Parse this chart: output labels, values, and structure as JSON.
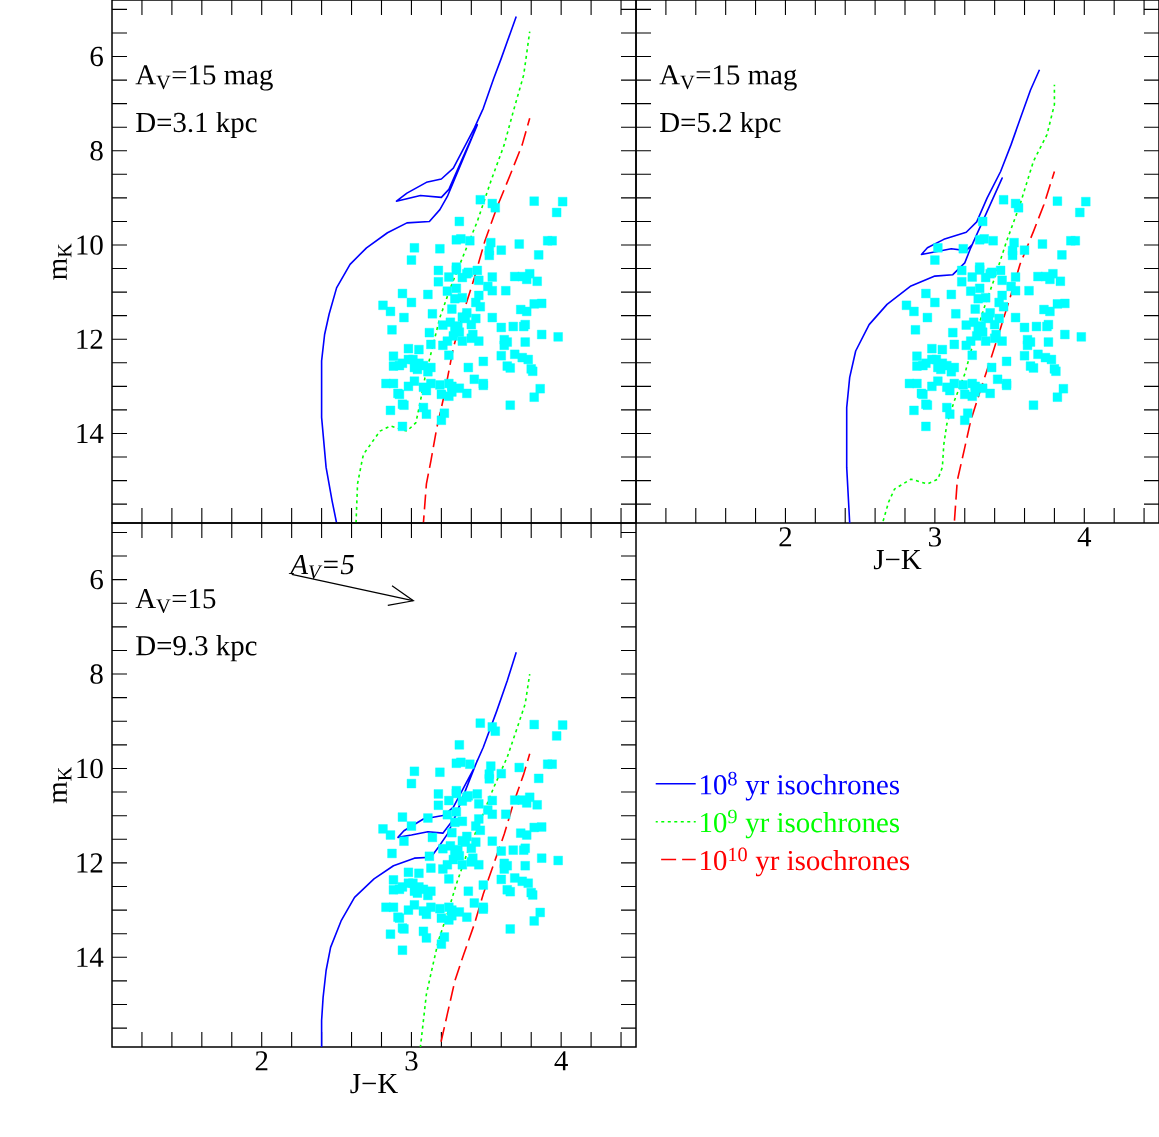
{
  "chart_data": [
    {
      "type": "scatter",
      "xlim": [
        1,
        4.5
      ],
      "ylim": [
        15.9,
        4.8
      ],
      "ylabel": "m$_{K}$",
      "tick_labels": "y",
      "xticks": [
        {
          "value": 1.2,
          "label": null
        },
        {
          "value": 1.4,
          "label": null
        },
        {
          "value": 1.6,
          "label": null
        },
        {
          "value": 1.8,
          "label": null
        },
        2,
        {
          "value": 2.2,
          "label": null
        },
        {
          "value": 2.4,
          "label": null
        },
        {
          "value": 2.6,
          "label": null
        },
        {
          "value": 2.8,
          "label": null
        },
        3,
        {
          "value": 3.2,
          "label": null
        },
        {
          "value": 3.4,
          "label": null
        },
        {
          "value": 3.6,
          "label": null
        },
        {
          "value": 3.8,
          "label": null
        },
        4,
        {
          "value": 4.2,
          "label": null
        },
        {
          "value": 4.4,
          "label": null
        }
      ],
      "yticks": [
        {
          "value": 5,
          "label": null
        },
        {
          "value": 5.5,
          "label": null
        },
        6,
        {
          "value": 6.5,
          "label": null
        },
        {
          "value": 7,
          "label": null
        },
        {
          "value": 7.5,
          "label": null
        },
        8,
        {
          "value": 8.5,
          "label": null
        },
        {
          "value": 9,
          "label": null
        },
        {
          "value": 9.5,
          "label": null
        },
        10,
        {
          "value": 10.5,
          "label": null
        },
        {
          "value": 11,
          "label": null
        },
        {
          "value": 11.5,
          "label": null
        },
        12,
        {
          "value": 12.5,
          "label": null
        },
        {
          "value": 13,
          "label": null
        },
        {
          "value": 13.5,
          "label": null
        },
        14,
        {
          "value": 14.5,
          "label": null
        },
        {
          "value": 15,
          "label": null
        },
        {
          "value": 15.5,
          "label": null
        }
      ],
      "annotations": [
        "A$_{V}$=15 mag",
        "D=3.1 kpc"
      ],
      "series": [
        {
          "color": "#00ffff",
          "marker": "square",
          "x": [
            3.46,
            3.54,
            3.56,
            3.82,
            4.01,
            3.97,
            3.32,
            3.3,
            3.33,
            3.39,
            3.53,
            3.72,
            3.91,
            3.94,
            3.02,
            3.19,
            3.52,
            3.6,
            3.52,
            3.85,
            3.0,
            3.18,
            3.3,
            3.3,
            3.44,
            3.37,
            3.38,
            3.34,
            3.25,
            3.54,
            3.69,
            3.74,
            3.79,
            3.77,
            3.84,
            3.18,
            3.45,
            3.3,
            3.24,
            3.51,
            3.54,
            3.63,
            2.94,
            3.11,
            3.45,
            3.29,
            3.34,
            3.0,
            2.81,
            3.43,
            3.46,
            3.82,
            3.87,
            2.86,
            3.27,
            3.73,
            3.77,
            2.95,
            3.14,
            3.37,
            3.34,
            3.36,
            3.43,
            3.54,
            3.26,
            3.21,
            3.31,
            3.4,
            3.6,
            3.68,
            3.75,
            3.76,
            2.87,
            3.29,
            3.32,
            3.12,
            3.28,
            3.41,
            3.4,
            3.87,
            3.98,
            3.24,
            3.34,
            3.45,
            3.62,
            3.64,
            3.76,
            3.62,
            3.21,
            3.13,
            2.98,
            3.05,
            3.25,
            3.6,
            3.69,
            3.74,
            3.78,
            2.88,
            2.98,
            3.01,
            2.94,
            2.88,
            2.92,
            3.48,
            3.05,
            3.08,
            3.02,
            3.04,
            3.13,
            3.11,
            3.38,
            3.64,
            3.66,
            3.8,
            3.81,
            2.83,
            2.88,
            3.02,
            2.98,
            3.13,
            3.19,
            3.25,
            3.27,
            3.32,
            3.42,
            3.48,
            3.48,
            3.86,
            2.91,
            2.92,
            3.08,
            3.1,
            3.2,
            3.25,
            3.27,
            3.37,
            3.82,
            2.94,
            2.95,
            3.66,
            2.86,
            3.08,
            3.1,
            3.22,
            3.2,
            2.94
          ],
          "values": [
            9.04,
            9.12,
            9.21,
            9.07,
            9.08,
            9.31,
            9.5,
            9.89,
            9.87,
            9.91,
            9.95,
            9.98,
            9.91,
            9.91,
            10.06,
            10.08,
            10.12,
            10.11,
            10.22,
            10.21,
            10.32,
            10.54,
            10.47,
            10.53,
            10.54,
            10.61,
            10.58,
            10.69,
            10.68,
            10.68,
            10.67,
            10.67,
            10.61,
            10.73,
            10.77,
            10.78,
            10.75,
            10.92,
            10.98,
            10.88,
            10.97,
            10.97,
            11.03,
            11.05,
            11.07,
            11.14,
            11.12,
            11.22,
            11.28,
            11.22,
            11.31,
            11.25,
            11.24,
            11.41,
            11.36,
            11.37,
            11.41,
            11.54,
            11.46,
            11.44,
            11.53,
            11.56,
            11.56,
            11.54,
            11.64,
            11.7,
            11.72,
            11.69,
            11.75,
            11.73,
            11.73,
            11.69,
            11.8,
            11.79,
            11.85,
            11.86,
            11.93,
            11.9,
            11.98,
            11.9,
            11.95,
            12.04,
            12.04,
            12.04,
            12.01,
            12.06,
            12.06,
            12.13,
            12.13,
            12.11,
            12.2,
            12.22,
            12.34,
            12.35,
            12.32,
            12.39,
            12.43,
            12.36,
            12.43,
            12.43,
            12.51,
            12.57,
            12.56,
            12.47,
            12.51,
            12.56,
            12.6,
            12.64,
            12.6,
            12.69,
            12.6,
            12.57,
            12.61,
            12.63,
            12.68,
            12.94,
            12.94,
            12.89,
            13.0,
            12.94,
            12.97,
            12.94,
            13.0,
            13.04,
            12.85,
            12.94,
            12.98,
            13.05,
            13.15,
            13.17,
            13.02,
            13.09,
            13.17,
            13.21,
            13.12,
            13.15,
            13.23,
            13.38,
            13.4,
            13.4,
            13.51,
            13.45,
            13.59,
            13.57,
            13.72,
            13.85
          ]
        },
        {
          "type": "line",
          "color": "#0000ff",
          "line_style": "solid",
          "x": [
            2.5,
            2.47,
            2.43,
            2.4,
            2.4,
            2.42,
            2.45,
            2.5,
            2.59,
            2.7,
            2.84,
            2.97,
            3.12,
            3.19,
            3.24,
            3.44,
            3.25,
            3.2,
            3.06,
            2.9,
            2.97,
            3.1,
            3.2,
            3.28,
            3.42,
            3.48,
            3.55,
            3.6,
            3.7
          ],
          "values": [
            15.9,
            15.43,
            14.72,
            13.66,
            12.46,
            11.9,
            11.47,
            10.91,
            10.41,
            10.06,
            9.74,
            9.53,
            9.5,
            9.25,
            8.97,
            7.45,
            8.82,
            8.99,
            8.95,
            9.07,
            8.9,
            8.67,
            8.6,
            8.37,
            7.52,
            7.1,
            6.46,
            6.04,
            5.15
          ]
        },
        {
          "type": "line",
          "color": "#00ff00",
          "line_style": "dotted",
          "x": [
            2.63,
            2.64,
            2.67,
            2.68,
            2.79,
            2.86,
            2.97,
            3.03,
            3.06,
            3.09,
            3.14,
            3.19,
            3.26,
            3.35,
            3.44,
            3.53,
            3.62,
            3.68,
            3.75,
            3.79
          ],
          "values": [
            15.9,
            15.07,
            14.58,
            14.44,
            13.95,
            13.84,
            13.95,
            13.77,
            13.31,
            12.82,
            12.18,
            11.54,
            10.91,
            10.2,
            9.5,
            8.65,
            7.87,
            7.17,
            6.39,
            5.47
          ]
        },
        {
          "type": "line",
          "color": "#ff0000",
          "line_style": "dashed",
          "x": [
            3.08,
            3.1,
            3.13,
            3.17,
            3.22,
            3.28,
            3.35,
            3.42,
            3.49,
            3.57,
            3.66,
            3.74,
            3.79
          ],
          "values": [
            15.9,
            15.07,
            14.58,
            13.87,
            13.17,
            12.18,
            11.4,
            10.7,
            9.92,
            9.21,
            8.51,
            7.87,
            7.31
          ]
        }
      ]
    },
    {
      "type": "scatter",
      "xlim": [
        1,
        4.5
      ],
      "ylim": [
        15.9,
        4.8
      ],
      "xlabel": "J−K",
      "tick_labels": "x",
      "xticks": [
        {
          "value": 1.2,
          "label": null
        },
        {
          "value": 1.4,
          "label": null
        },
        {
          "value": 1.6,
          "label": null
        },
        {
          "value": 1.8,
          "label": null
        },
        2,
        {
          "value": 2.2,
          "label": null
        },
        {
          "value": 2.4,
          "label": null
        },
        {
          "value": 2.6,
          "label": null
        },
        {
          "value": 2.8,
          "label": null
        },
        3,
        {
          "value": 3.2,
          "label": null
        },
        {
          "value": 3.4,
          "label": null
        },
        {
          "value": 3.6,
          "label": null
        },
        {
          "value": 3.8,
          "label": null
        },
        4,
        {
          "value": 4.2,
          "label": null
        },
        {
          "value": 4.4,
          "label": null
        }
      ],
      "yticks": [
        {
          "value": 5,
          "label": null
        },
        {
          "value": 5.5,
          "label": null
        },
        6,
        {
          "value": 6.5,
          "label": null
        },
        {
          "value": 7,
          "label": null
        },
        {
          "value": 7.5,
          "label": null
        },
        8,
        {
          "value": 8.5,
          "label": null
        },
        {
          "value": 9,
          "label": null
        },
        {
          "value": 9.5,
          "label": null
        },
        10,
        {
          "value": 10.5,
          "label": null
        },
        {
          "value": 11,
          "label": null
        },
        {
          "value": 11.5,
          "label": null
        },
        12,
        {
          "value": 12.5,
          "label": null
        },
        {
          "value": 13,
          "label": null
        },
        {
          "value": 13.5,
          "label": null
        },
        14,
        {
          "value": 14.5,
          "label": null
        },
        {
          "value": 15,
          "label": null
        },
        {
          "value": 15.5,
          "label": null
        }
      ],
      "annotations": [
        "A$_{V}$=15 mag",
        "D=5.2 kpc"
      ],
      "series": [
        {
          "color": "#00ffff",
          "marker": "square",
          "x": [
            3.46,
            3.54,
            3.56,
            3.82,
            4.01,
            3.97,
            3.32,
            3.3,
            3.33,
            3.39,
            3.53,
            3.72,
            3.91,
            3.94,
            3.02,
            3.19,
            3.52,
            3.6,
            3.52,
            3.85,
            3.0,
            3.18,
            3.3,
            3.3,
            3.44,
            3.37,
            3.38,
            3.34,
            3.25,
            3.54,
            3.69,
            3.74,
            3.79,
            3.77,
            3.84,
            3.18,
            3.45,
            3.3,
            3.24,
            3.51,
            3.54,
            3.63,
            2.94,
            3.11,
            3.45,
            3.29,
            3.34,
            3.0,
            2.81,
            3.43,
            3.46,
            3.82,
            3.87,
            2.86,
            3.27,
            3.73,
            3.77,
            2.95,
            3.14,
            3.37,
            3.34,
            3.36,
            3.43,
            3.54,
            3.26,
            3.21,
            3.31,
            3.4,
            3.6,
            3.68,
            3.75,
            3.76,
            2.87,
            3.29,
            3.32,
            3.12,
            3.28,
            3.41,
            3.4,
            3.87,
            3.98,
            3.24,
            3.34,
            3.45,
            3.62,
            3.64,
            3.76,
            3.62,
            3.21,
            3.13,
            2.98,
            3.05,
            3.25,
            3.6,
            3.69,
            3.74,
            3.78,
            2.88,
            2.98,
            3.01,
            2.94,
            2.88,
            2.92,
            3.48,
            3.05,
            3.08,
            3.02,
            3.04,
            3.13,
            3.11,
            3.38,
            3.64,
            3.66,
            3.8,
            3.81,
            2.83,
            2.88,
            3.02,
            2.98,
            3.13,
            3.19,
            3.25,
            3.27,
            3.32,
            3.42,
            3.48,
            3.48,
            3.86,
            2.91,
            2.92,
            3.08,
            3.1,
            3.2,
            3.25,
            3.27,
            3.37,
            3.82,
            2.94,
            2.95,
            3.66,
            2.86,
            3.08,
            3.1,
            3.22,
            3.2,
            2.94
          ],
          "values": [
            9.04,
            9.12,
            9.21,
            9.07,
            9.08,
            9.31,
            9.5,
            9.89,
            9.87,
            9.91,
            9.95,
            9.98,
            9.91,
            9.91,
            10.06,
            10.08,
            10.12,
            10.11,
            10.22,
            10.21,
            10.32,
            10.54,
            10.47,
            10.53,
            10.54,
            10.61,
            10.58,
            10.69,
            10.68,
            10.68,
            10.67,
            10.67,
            10.61,
            10.73,
            10.77,
            10.78,
            10.75,
            10.92,
            10.98,
            10.88,
            10.97,
            10.97,
            11.03,
            11.05,
            11.07,
            11.14,
            11.12,
            11.22,
            11.28,
            11.22,
            11.31,
            11.25,
            11.24,
            11.41,
            11.36,
            11.37,
            11.41,
            11.54,
            11.46,
            11.44,
            11.53,
            11.56,
            11.56,
            11.54,
            11.64,
            11.7,
            11.72,
            11.69,
            11.75,
            11.73,
            11.73,
            11.69,
            11.8,
            11.79,
            11.85,
            11.86,
            11.93,
            11.9,
            11.98,
            11.9,
            11.95,
            12.04,
            12.04,
            12.04,
            12.01,
            12.06,
            12.06,
            12.13,
            12.13,
            12.11,
            12.2,
            12.22,
            12.34,
            12.35,
            12.32,
            12.39,
            12.43,
            12.36,
            12.43,
            12.43,
            12.51,
            12.57,
            12.56,
            12.47,
            12.51,
            12.56,
            12.6,
            12.64,
            12.6,
            12.69,
            12.6,
            12.57,
            12.61,
            12.63,
            12.68,
            12.94,
            12.94,
            12.89,
            13.0,
            12.94,
            12.97,
            12.94,
            13.0,
            13.04,
            12.85,
            12.94,
            12.98,
            13.05,
            13.15,
            13.17,
            13.02,
            13.09,
            13.17,
            13.21,
            13.12,
            13.15,
            13.23,
            13.38,
            13.4,
            13.4,
            13.51,
            13.45,
            13.59,
            13.57,
            13.72,
            13.85
          ]
        },
        {
          "type": "line",
          "color": "#0000ff",
          "line_style": "solid",
          "x": [
            2.43,
            2.41,
            2.41,
            2.43,
            2.47,
            2.56,
            2.68,
            2.84,
            3.0,
            3.12,
            3.2,
            3.24,
            3.45,
            3.25,
            3.21,
            3.11,
            2.91,
            2.95,
            3.06,
            3.21,
            3.28,
            3.35,
            3.44,
            3.51,
            3.58,
            3.64,
            3.7
          ],
          "values": [
            15.9,
            14.72,
            13.45,
            12.81,
            12.25,
            11.69,
            11.26,
            10.87,
            10.66,
            10.63,
            10.38,
            10.06,
            8.58,
            9.99,
            10.12,
            10.08,
            10.2,
            10.06,
            9.88,
            9.73,
            9.51,
            9.0,
            8.44,
            7.87,
            7.24,
            6.71,
            6.28
          ]
        },
        {
          "type": "line",
          "color": "#00ff00",
          "line_style": "dotted",
          "x": [
            2.65,
            2.69,
            2.73,
            2.84,
            2.95,
            3.02,
            3.05,
            3.06,
            3.08,
            3.13,
            3.2,
            3.26,
            3.33,
            3.4,
            3.48,
            3.57,
            3.66,
            3.75,
            3.8,
            3.8
          ],
          "values": [
            15.9,
            15.46,
            15.18,
            14.97,
            15.07,
            14.97,
            14.72,
            14.23,
            13.8,
            13.31,
            12.74,
            12.04,
            11.33,
            10.7,
            9.92,
            9.14,
            8.22,
            7.66,
            7.02,
            6.6
          ]
        },
        {
          "type": "line",
          "color": "#ff0000",
          "line_style": "dashed",
          "x": [
            3.13,
            3.15,
            3.2,
            3.24,
            3.31,
            3.37,
            3.44,
            3.51,
            3.57,
            3.66,
            3.73,
            3.8
          ],
          "values": [
            15.9,
            15.0,
            14.3,
            13.73,
            13.03,
            12.46,
            11.76,
            11.05,
            10.41,
            9.71,
            9.14,
            8.44
          ]
        }
      ]
    },
    {
      "type": "scatter",
      "xlim": [
        1,
        4.5
      ],
      "ylim": [
        15.9,
        4.8
      ],
      "xlabel": "J−K",
      "ylabel": "m$_{K}$",
      "legend": "right",
      "xticks": [
        {
          "value": 1.2,
          "label": null
        },
        {
          "value": 1.4,
          "label": null
        },
        {
          "value": 1.6,
          "label": null
        },
        {
          "value": 1.8,
          "label": null
        },
        2,
        {
          "value": 2.2,
          "label": null
        },
        {
          "value": 2.4,
          "label": null
        },
        {
          "value": 2.6,
          "label": null
        },
        {
          "value": 2.8,
          "label": null
        },
        3,
        {
          "value": 3.2,
          "label": null
        },
        {
          "value": 3.4,
          "label": null
        },
        {
          "value": 3.6,
          "label": null
        },
        {
          "value": 3.8,
          "label": null
        },
        4,
        {
          "value": 4.2,
          "label": null
        },
        {
          "value": 4.4,
          "label": null
        }
      ],
      "yticks": [
        {
          "value": 5,
          "label": null
        },
        {
          "value": 5.5,
          "label": null
        },
        6,
        {
          "value": 6.5,
          "label": null
        },
        {
          "value": 7,
          "label": null
        },
        {
          "value": 7.5,
          "label": null
        },
        8,
        {
          "value": 8.5,
          "label": null
        },
        {
          "value": 9,
          "label": null
        },
        {
          "value": 9.5,
          "label": null
        },
        10,
        {
          "value": 10.5,
          "label": null
        },
        {
          "value": 11,
          "label": null
        },
        {
          "value": 11.5,
          "label": null
        },
        12,
        {
          "value": 12.5,
          "label": null
        },
        {
          "value": 13,
          "label": null
        },
        {
          "value": 13.5,
          "label": null
        },
        14,
        {
          "value": 14.5,
          "label": null
        },
        {
          "value": 15,
          "label": null
        },
        {
          "value": 15.5,
          "label": null
        }
      ],
      "annotations": [
        "A$_{V}$=15",
        "D=9.3 kpc",
        "A$_{V}$=5"
      ],
      "series": [
        {
          "color": "#00ffff",
          "marker": "square",
          "x": [
            3.46,
            3.54,
            3.56,
            3.82,
            4.01,
            3.97,
            3.32,
            3.3,
            3.33,
            3.39,
            3.53,
            3.72,
            3.91,
            3.94,
            3.02,
            3.19,
            3.52,
            3.6,
            3.52,
            3.85,
            3.0,
            3.18,
            3.3,
            3.3,
            3.44,
            3.37,
            3.38,
            3.34,
            3.25,
            3.54,
            3.69,
            3.74,
            3.79,
            3.77,
            3.84,
            3.18,
            3.45,
            3.3,
            3.24,
            3.51,
            3.54,
            3.63,
            2.94,
            3.11,
            3.45,
            3.29,
            3.34,
            3.0,
            2.81,
            3.43,
            3.46,
            3.82,
            3.87,
            2.86,
            3.27,
            3.73,
            3.77,
            2.95,
            3.14,
            3.37,
            3.34,
            3.36,
            3.43,
            3.54,
            3.26,
            3.21,
            3.31,
            3.4,
            3.6,
            3.68,
            3.75,
            3.76,
            2.87,
            3.29,
            3.32,
            3.12,
            3.28,
            3.41,
            3.4,
            3.87,
            3.98,
            3.24,
            3.34,
            3.45,
            3.62,
            3.64,
            3.76,
            3.62,
            3.21,
            3.13,
            2.98,
            3.05,
            3.25,
            3.6,
            3.69,
            3.74,
            3.78,
            2.88,
            2.98,
            3.01,
            2.94,
            2.88,
            2.92,
            3.48,
            3.05,
            3.08,
            3.02,
            3.04,
            3.13,
            3.11,
            3.38,
            3.64,
            3.66,
            3.8,
            3.81,
            2.83,
            2.88,
            3.02,
            2.98,
            3.13,
            3.19,
            3.25,
            3.27,
            3.32,
            3.42,
            3.48,
            3.48,
            3.86,
            2.91,
            2.92,
            3.08,
            3.1,
            3.2,
            3.25,
            3.27,
            3.37,
            3.82,
            2.94,
            2.95,
            3.66,
            2.86,
            3.08,
            3.1,
            3.22,
            3.2,
            2.94
          ],
          "values": [
            9.04,
            9.12,
            9.21,
            9.07,
            9.08,
            9.31,
            9.5,
            9.89,
            9.87,
            9.91,
            9.95,
            9.98,
            9.91,
            9.91,
            10.06,
            10.08,
            10.12,
            10.11,
            10.22,
            10.21,
            10.32,
            10.54,
            10.47,
            10.53,
            10.54,
            10.61,
            10.58,
            10.69,
            10.68,
            10.68,
            10.67,
            10.67,
            10.61,
            10.73,
            10.77,
            10.78,
            10.75,
            10.92,
            10.98,
            10.88,
            10.97,
            10.97,
            11.03,
            11.05,
            11.07,
            11.14,
            11.12,
            11.22,
            11.28,
            11.22,
            11.31,
            11.25,
            11.24,
            11.41,
            11.36,
            11.37,
            11.41,
            11.54,
            11.46,
            11.44,
            11.53,
            11.56,
            11.56,
            11.54,
            11.64,
            11.7,
            11.72,
            11.69,
            11.75,
            11.73,
            11.73,
            11.69,
            11.8,
            11.79,
            11.85,
            11.86,
            11.93,
            11.9,
            11.98,
            11.9,
            11.95,
            12.04,
            12.04,
            12.04,
            12.01,
            12.06,
            12.06,
            12.13,
            12.13,
            12.11,
            12.2,
            12.22,
            12.34,
            12.35,
            12.32,
            12.39,
            12.43,
            12.36,
            12.43,
            12.43,
            12.51,
            12.57,
            12.56,
            12.47,
            12.51,
            12.56,
            12.6,
            12.64,
            12.6,
            12.69,
            12.6,
            12.57,
            12.61,
            12.63,
            12.68,
            12.94,
            12.94,
            12.89,
            13.0,
            12.94,
            12.97,
            12.94,
            13.0,
            13.04,
            12.85,
            12.94,
            12.98,
            13.05,
            13.15,
            13.17,
            13.02,
            13.09,
            13.17,
            13.21,
            13.12,
            13.15,
            13.23,
            13.38,
            13.4,
            13.4,
            13.51,
            13.45,
            13.59,
            13.57,
            13.72,
            13.85
          ]
        },
        {
          "type": "line",
          "name": "10$^{8}$ yr isochrones",
          "color": "#0000ff",
          "line_style": "solid",
          "x": [
            2.4,
            2.4,
            2.41,
            2.43,
            2.46,
            2.53,
            2.62,
            2.75,
            2.88,
            3.02,
            3.13,
            3.18,
            3.24,
            3.28,
            3.44,
            3.29,
            3.21,
            3.11,
            3.0,
            2.91,
            2.95,
            3.08,
            3.22,
            3.28,
            3.35,
            3.42,
            3.48,
            3.57,
            3.64,
            3.7
          ],
          "values": [
            15.9,
            15.34,
            14.85,
            14.28,
            13.79,
            13.23,
            12.73,
            12.34,
            12.06,
            11.9,
            11.88,
            11.67,
            11.39,
            11.11,
            9.83,
            11.04,
            11.37,
            11.34,
            11.41,
            11.46,
            11.32,
            11.07,
            10.99,
            10.82,
            10.4,
            9.98,
            9.55,
            8.78,
            8.14,
            7.54
          ]
        },
        {
          "type": "line",
          "name": "10$^{9}$ yr isochrones",
          "color": "#00ff00",
          "line_style": "dotted",
          "x": [
            3.06,
            3.08,
            3.1,
            3.14,
            3.18,
            3.24,
            3.3,
            3.37,
            3.46,
            3.55,
            3.64,
            3.7,
            3.76,
            3.79
          ],
          "values": [
            15.9,
            15.34,
            14.78,
            14.21,
            13.65,
            13.08,
            12.45,
            11.81,
            11.11,
            10.4,
            9.76,
            9.2,
            8.63,
            8.0
          ]
        },
        {
          "type": "line",
          "name": "10$^{10}$ yr isochrones",
          "color": "#ff0000",
          "line_style": "dashed",
          "x": [
            3.19,
            3.24,
            3.29,
            3.35,
            3.42,
            3.48,
            3.55,
            3.62,
            3.68,
            3.75,
            3.79
          ],
          "values": [
            15.9,
            15.2,
            14.5,
            13.93,
            13.3,
            12.66,
            12.02,
            11.39,
            10.75,
            10.12,
            9.69
          ]
        }
      ]
    }
  ]
}
